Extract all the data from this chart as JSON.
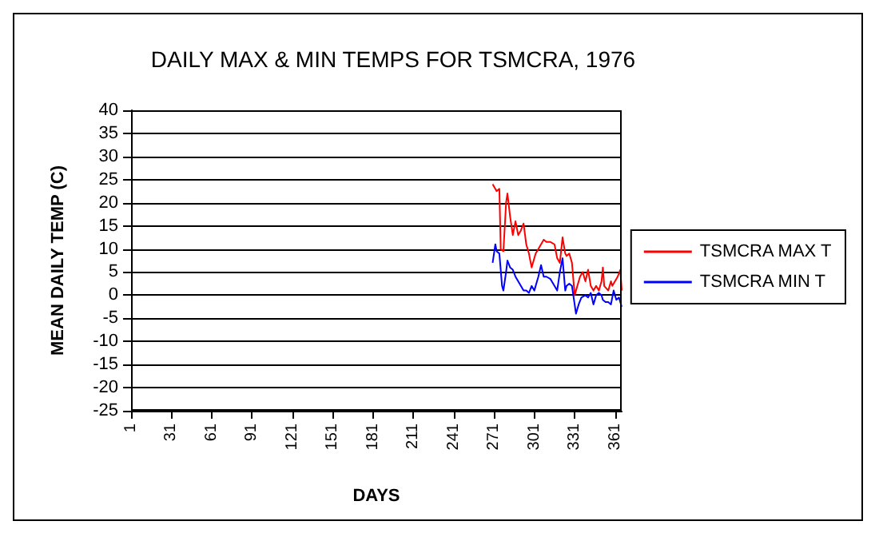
{
  "chart_data": {
    "type": "line",
    "title": "DAILY MAX & MIN TEMPS FOR TSMCRA, 1976",
    "xlabel": "DAYS",
    "ylabel": "MEAN DAILY TEMP (C)",
    "xlim": [
      1,
      366
    ],
    "xticks": [
      1,
      31,
      61,
      91,
      121,
      151,
      181,
      211,
      241,
      271,
      301,
      331,
      361
    ],
    "ylim": [
      -25,
      40
    ],
    "yticks": [
      -25,
      -20,
      -15,
      -10,
      -5,
      0,
      5,
      10,
      15,
      20,
      25,
      30,
      35,
      40
    ],
    "grid": "y",
    "legend": "right",
    "marker": "none",
    "line_style": "solid",
    "series": [
      {
        "name": "TSMCRA MAX T",
        "color": "#ff0000",
        "x": [
          270,
          273,
          275,
          276,
          278,
          280,
          281,
          283,
          285,
          287,
          289,
          291,
          293,
          295,
          297,
          299,
          302,
          303,
          306,
          308,
          310,
          313,
          316,
          318,
          320,
          322,
          324,
          325,
          327,
          329,
          331,
          332,
          335,
          337,
          339,
          341,
          343,
          345,
          347,
          349,
          351,
          352,
          353,
          356,
          358,
          359,
          361,
          363,
          365,
          366
        ],
        "values": [
          24,
          22.5,
          23,
          10,
          9.5,
          20,
          22,
          17,
          13,
          16,
          13,
          14,
          15.5,
          11,
          9,
          6,
          9,
          9.5,
          11,
          12,
          11.5,
          11.5,
          11,
          8,
          7,
          12.5,
          9,
          8.5,
          9,
          7,
          0,
          1,
          4,
          5,
          3,
          5.5,
          2,
          1,
          2,
          1,
          3,
          6,
          2,
          1,
          3,
          2,
          3,
          4,
          5.5,
          1
        ]
      },
      {
        "name": "TSMCRA MIN T",
        "color": "#0000ff",
        "x": [
          270,
          272,
          273,
          275,
          277,
          278,
          280,
          281,
          283,
          285,
          287,
          289,
          291,
          293,
          295,
          297,
          299,
          301,
          302,
          304,
          306,
          308,
          310,
          313,
          316,
          318,
          320,
          322,
          324,
          325,
          327,
          329,
          331,
          332,
          334,
          336,
          339,
          341,
          343,
          345,
          347,
          349,
          351,
          352,
          354,
          356,
          358,
          360,
          362,
          364,
          366
        ],
        "values": [
          7,
          11,
          9.5,
          9,
          2,
          1,
          5,
          7.5,
          6,
          5.5,
          4,
          3,
          2,
          1,
          1,
          0.5,
          2,
          1,
          2,
          4,
          6.5,
          4,
          4,
          3.5,
          2,
          1,
          5,
          8,
          1,
          2,
          2.5,
          2,
          -2,
          -4,
          -2,
          -0.5,
          0,
          -0.5,
          0.5,
          -2,
          0,
          0.5,
          0,
          -1,
          -1.5,
          -1.5,
          -2,
          1,
          -1,
          -0.5,
          -2.5
        ]
      }
    ]
  }
}
